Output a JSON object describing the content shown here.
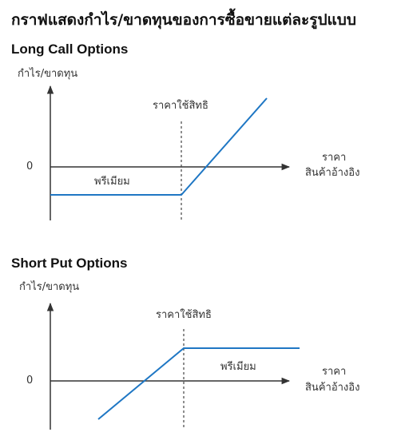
{
  "page": {
    "title": "กราฟแสดงกำไร/ขาดทุนของการซื้อขายแต่ละรูปแบบ"
  },
  "diagrams": [
    {
      "title": "Long Call Options",
      "y_axis_label": "กำไร/ขาดทุน",
      "zero_label": "0",
      "strike_label": "ราคาใช้สิทธิ",
      "premium_label": "พรีเมียม",
      "x_axis_label_line1": "ราคา",
      "x_axis_label_line2": "สินค้าอ้างอิง"
    },
    {
      "title": "Short Put Options",
      "y_axis_label": "กำไร/ขาดทุน",
      "zero_label": "0",
      "strike_label": "ราคาใช้สิทธิ",
      "premium_label": "พรีเมียม",
      "x_axis_label_line1": "ราคา",
      "x_axis_label_line2": "สินค้าอ้างอิง"
    }
  ],
  "colors": {
    "payoff_line": "#1f77c4",
    "axis": "#333333",
    "strike_line": "#444444"
  }
}
